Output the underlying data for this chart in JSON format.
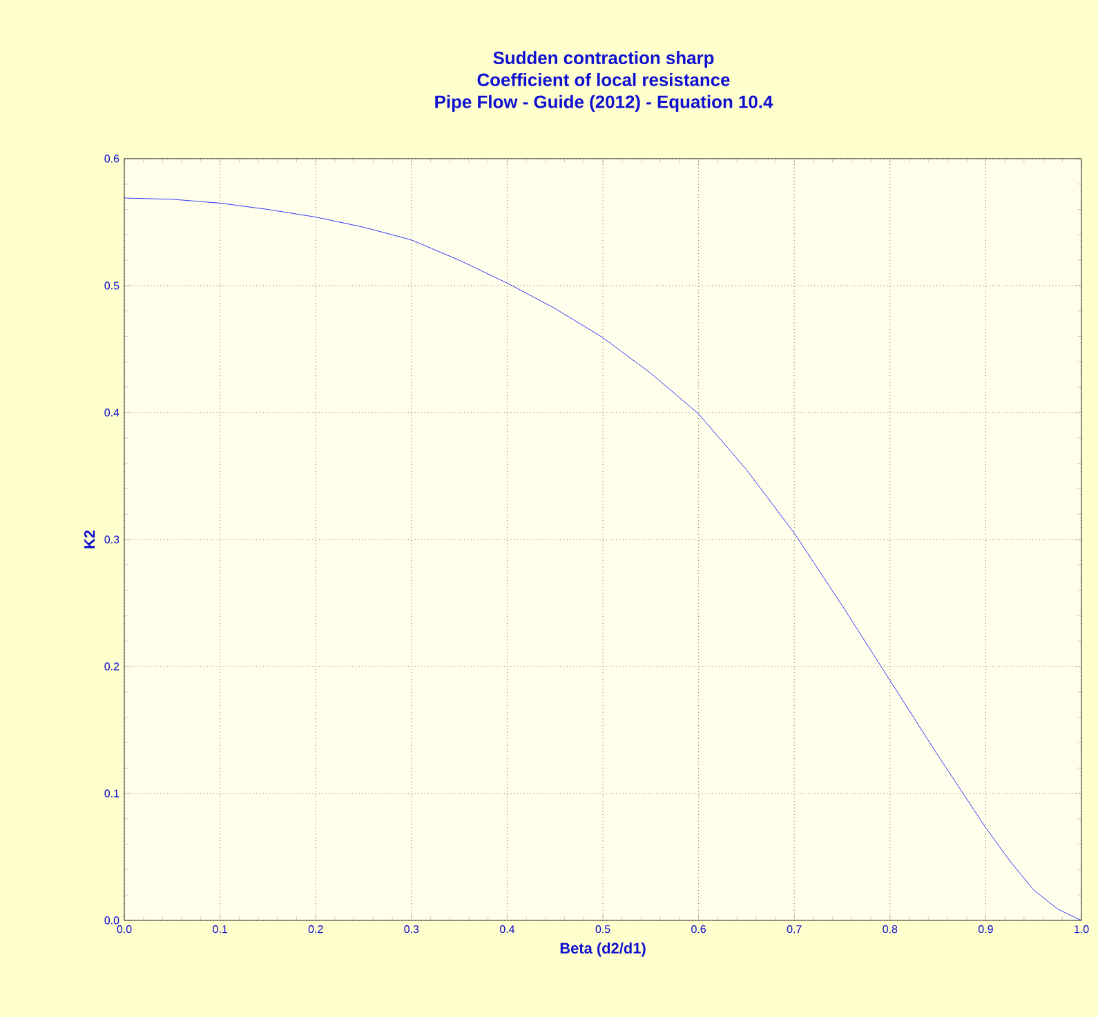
{
  "chart_data": {
    "type": "line",
    "title": "Sudden contraction sharp\nCoefficient of local resistance\nPipe Flow - Guide (2012) - Equation 10.4",
    "xlabel": "Beta (d2/d1)",
    "ylabel": "K2",
    "x": [
      0,
      0.05,
      0.1,
      0.15,
      0.2,
      0.25,
      0.3,
      0.35,
      0.4,
      0.45,
      0.5,
      0.55,
      0.6,
      0.65,
      0.7,
      0.75,
      0.8,
      0.85,
      0.9,
      0.925,
      0.95,
      0.975,
      1.0
    ],
    "series": [
      {
        "color": "#0000ff",
        "values": [
          0.569,
          0.568,
          0.565,
          0.56,
          0.554,
          0.546,
          0.536,
          0.52,
          0.502,
          0.482,
          0.459,
          0.431,
          0.399,
          0.355,
          0.305,
          0.248,
          0.189,
          0.13,
          0.073,
          0.047,
          0.024,
          0.009,
          0.0
        ]
      }
    ],
    "xlim": [
      0,
      1
    ],
    "ylim": [
      0,
      0.6
    ],
    "xticks": [
      {
        "value": 0,
        "label": "0.0"
      },
      0.1,
      0.2,
      0.3,
      0.4,
      0.5,
      0.6,
      0.7,
      0.8,
      0.9,
      {
        "value": 1,
        "label": "1.0"
      }
    ],
    "yticks": [
      {
        "value": 0,
        "label": "0.0"
      },
      0.1,
      0.2,
      0.3,
      0.4,
      0.5,
      0.6
    ],
    "grid": true,
    "marker": "none",
    "line_style": "solid"
  }
}
